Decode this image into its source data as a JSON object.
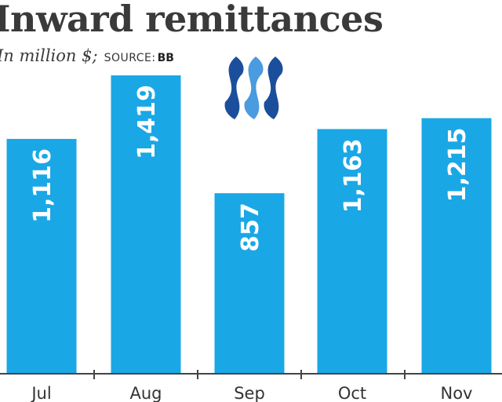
{
  "chart_data": {
    "type": "bar",
    "title": "Inward remittances",
    "unit_label": "In million $;",
    "source_label": "SOURCE:",
    "source": "BB",
    "categories": [
      "Jul",
      "Aug",
      "Sep",
      "Oct",
      "Nov"
    ],
    "values": [
      1116,
      1419,
      857,
      1163,
      1215
    ],
    "value_labels": [
      "1,116",
      "1,419",
      "857",
      "1,163",
      "1,215"
    ],
    "ylim": [
      0,
      1419
    ],
    "grid": false,
    "bar_color": "#1aa7e6",
    "axis_color": "#444444"
  },
  "logo": {
    "name": "steem-logo",
    "colors": [
      "#1b4f9c",
      "#4a9be0",
      "#1b4f9c"
    ]
  }
}
